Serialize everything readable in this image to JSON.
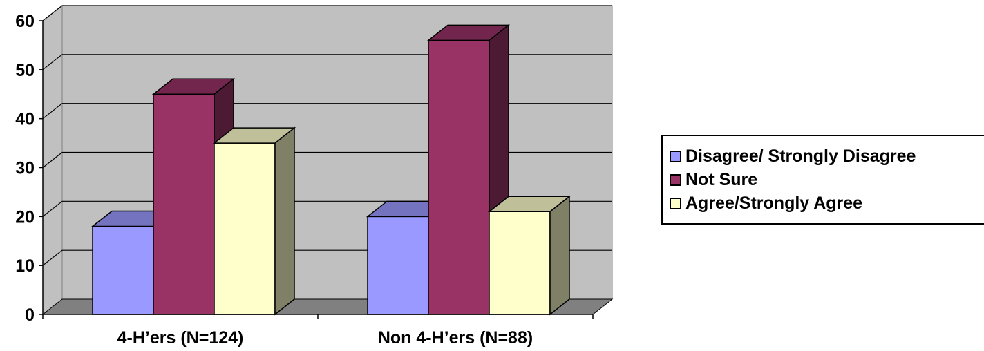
{
  "chart_data": {
    "type": "bar",
    "categories": [
      "4-H’ers (N=124)",
      "Non 4-H’ers (N=88)"
    ],
    "series": [
      {
        "name": "Disagree/ Strongly Disagree",
        "values": [
          18,
          20
        ],
        "color": "#9999FF"
      },
      {
        "name": "Not Sure",
        "values": [
          45,
          56
        ],
        "color": "#993366"
      },
      {
        "name": "Agree/Strongly Agree",
        "values": [
          35,
          21
        ],
        "color": "#FFFFCC"
      }
    ],
    "ylim": [
      0,
      60
    ],
    "yticks": [
      0,
      10,
      20,
      30,
      40,
      50,
      60
    ],
    "grid": true,
    "legend_position": "right",
    "style": "3d-clustered-column",
    "wall_color": "#C0C0C0",
    "floor_color": "#808080"
  }
}
